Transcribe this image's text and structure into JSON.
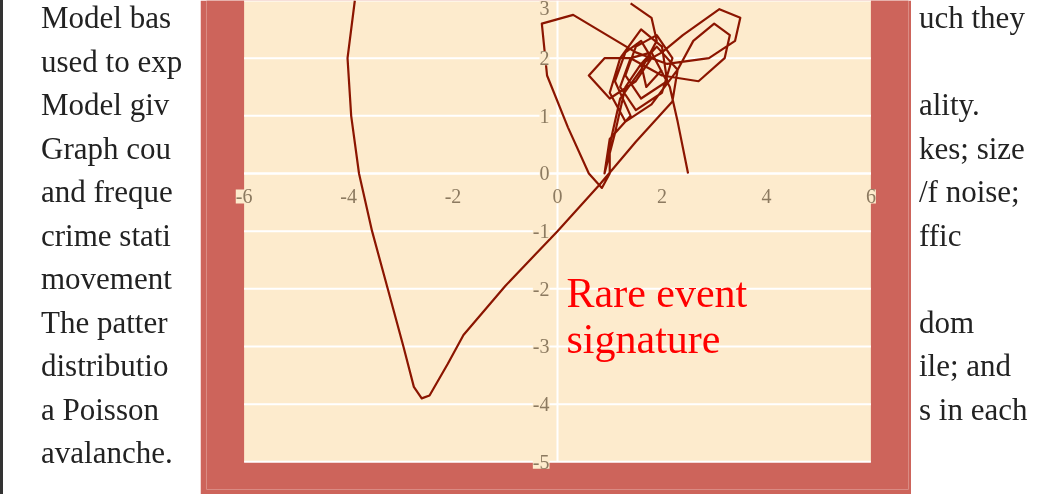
{
  "chart_data": {
    "type": "line",
    "xlim": [
      -6,
      6
    ],
    "ylim": [
      -5,
      3
    ],
    "xticks": [
      -6,
      -4,
      -2,
      0,
      2,
      4,
      6
    ],
    "yticks": [
      -5,
      -4,
      -3,
      -2,
      -1,
      0,
      1,
      2,
      3
    ],
    "grid": "y",
    "marker": "none",
    "line_style": "solid",
    "annotations": [
      "Rare event signature",
      "Model bas",
      "used to exp",
      "Model giv",
      "Graph cou",
      "and freque",
      "crime stati",
      "movement",
      "The patter",
      "distributio",
      "a Poisson",
      "avalanche.",
      "uch they",
      "ality.",
      "kes; size",
      "/f noise;",
      "ffic",
      "dom",
      "ile; and",
      "s in each"
    ],
    "series": [
      {
        "color": "#8b1500",
        "x": [
          2.5,
          2.3,
          2.15,
          1.8,
          1.4,
          1.2,
          1.5,
          2.0,
          2.2,
          1.9,
          1.5,
          1.3,
          1.6,
          2.1,
          2.0,
          1.6,
          1.2,
          1.0,
          1.3,
          1.8,
          2.3,
          2.6,
          3.0,
          3.3,
          3.2,
          2.7,
          2.0,
          1.4,
          0.9,
          0.6,
          1.0,
          1.5,
          1.8,
          1.6,
          1.3,
          1.1,
          1.4,
          1.0,
          0.9,
          1.1,
          1.3,
          1.6,
          2.0,
          2.4,
          3.1,
          3.5,
          3.4,
          2.9,
          2.1,
          1.5,
          0.3,
          -0.3,
          -0.2,
          0.2,
          0.6,
          0.85,
          1.0,
          1.0,
          1.2,
          1.6,
          1.9,
          1.8,
          1.4,
          null,
          -3.88,
          -4.02,
          -3.95,
          -3.8,
          -3.55,
          -3.25,
          -2.95,
          -2.75,
          -2.6,
          -2.45,
          -2.1,
          -1.8,
          -1.0,
          0.0,
          0.8,
          1.5,
          2.2,
          2.3,
          1.9,
          1.6,
          1.7,
          2.0
        ],
        "values": [
          0,
          0.9,
          1.5,
          2.1,
          2.0,
          1.5,
          1.1,
          1.4,
          2.0,
          2.4,
          2.2,
          1.7,
          1.3,
          1.6,
          2.2,
          2.5,
          2.0,
          1.4,
          0.9,
          1.2,
          1.8,
          2.3,
          2.6,
          2.4,
          2.0,
          1.6,
          1.7,
          2.0,
          2.0,
          1.7,
          1.3,
          1.6,
          2.0,
          2.3,
          2.1,
          1.6,
          1.0,
          0.6,
          0.0,
          0.7,
          1.5,
          1.9,
          2.1,
          2.4,
          2.85,
          2.7,
          2.3,
          2.0,
          1.9,
          2.1,
          2.75,
          2.6,
          1.7,
          0.8,
          0.0,
          -0.25,
          0.0,
          0.5,
          1.3,
          1.8,
          2.3,
          2.7,
          2.95,
          null,
          3.0,
          2.0,
          1.0,
          0.0,
          -1.0,
          -2.0,
          -3.0,
          -3.7,
          -3.9,
          -3.85,
          -3.3,
          -2.8,
          -1.95,
          -1.0,
          -0.2,
          0.55,
          1.25,
          1.8,
          2.2,
          1.9,
          1.5,
          1.8
        ]
      }
    ]
  }
}
